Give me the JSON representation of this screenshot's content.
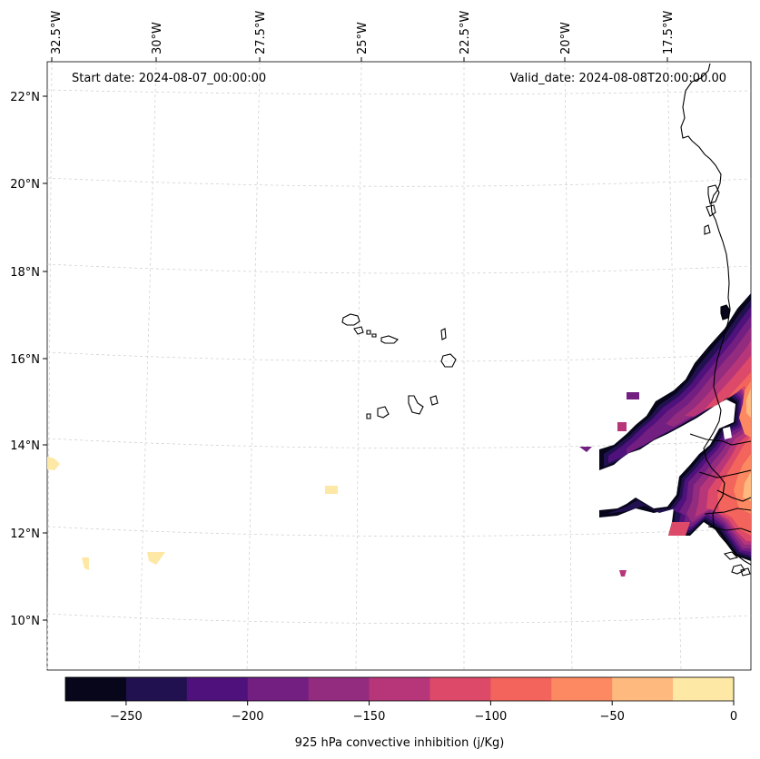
{
  "header": {
    "start_date": "Start date: 2024-08-07_00:00:00",
    "valid_date": "Valid_date: 2024-08-08T20:00:00.00"
  },
  "axes": {
    "top_labels": [
      "32.5°W",
      "30°W",
      "27.5°W",
      "25°W",
      "22.5°W",
      "20°W",
      "17.5°W"
    ],
    "left_labels": [
      "22°N",
      "20°N",
      "18°N",
      "16°N",
      "14°N",
      "12°N",
      "10°N"
    ]
  },
  "colorbar": {
    "title": "925 hPa convective inhibition (j/Kg)",
    "tick_labels": [
      "−250",
      "−200",
      "−150",
      "−100",
      "−50",
      "0"
    ],
    "colors": [
      "#07061a",
      "#221150",
      "#4f117b",
      "#721f81",
      "#932b7f",
      "#b7367a",
      "#dd4968",
      "#f2645c",
      "#fc8961",
      "#feb97f",
      "#fde8a5"
    ]
  }
}
